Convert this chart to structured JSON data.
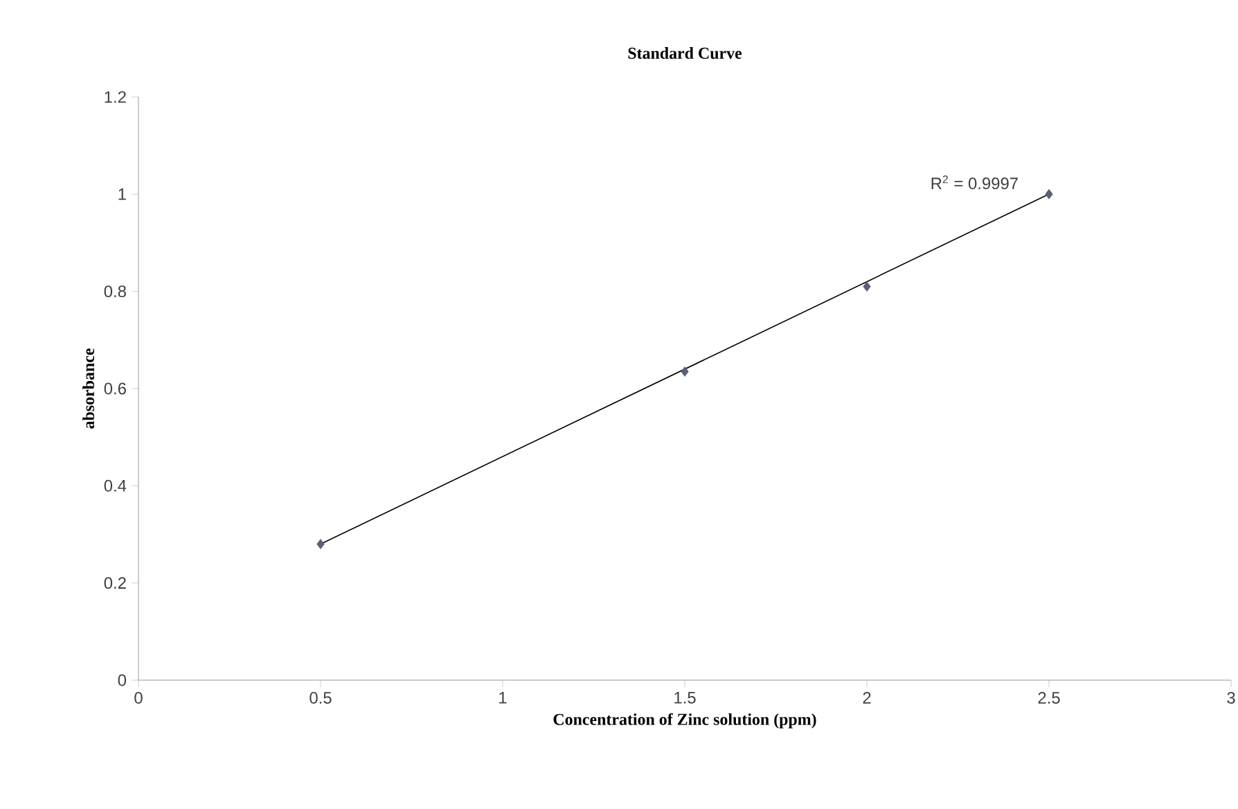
{
  "chart_data": {
    "type": "scatter",
    "title": "Standard  Curve",
    "xlabel": "Concentration  of Zinc solution (ppm)",
    "ylabel": "absorbance",
    "x": [
      0.5,
      1.5,
      2,
      2.5
    ],
    "series": [
      {
        "color": "#5a6078",
        "values": [
          0.28,
          0.635,
          0.81,
          1.0
        ],
        "marker": "diamond"
      },
      {
        "type": "line",
        "color": "#000000",
        "x": [
          0.5,
          2.5
        ],
        "values": [
          0.28,
          1.0
        ],
        "marker": "none"
      }
    ],
    "annotations": [
      "R$^{2}$ = 0.9997"
    ],
    "xlim": [
      0,
      3
    ],
    "ylim": [
      0,
      1.2
    ],
    "xticks": [
      0,
      0.5,
      1,
      1.5,
      2,
      2.5,
      3
    ],
    "yticks": [
      0,
      0.2,
      0.4,
      0.6,
      0.8,
      1,
      1.2
    ],
    "grid": false
  }
}
